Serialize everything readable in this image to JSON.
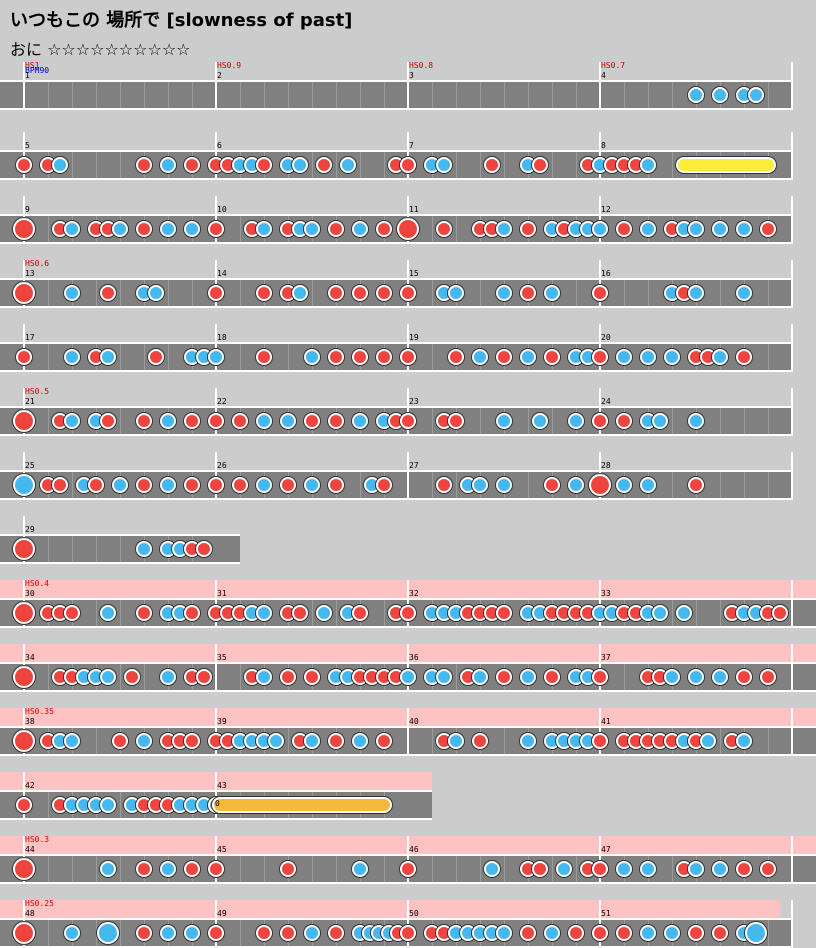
{
  "header": {
    "title": "いつもこの 場所で [slowness of past]",
    "difficulty": "おに ☆☆☆☆☆☆☆☆☆☆"
  },
  "colors": {
    "don": "#f0453e",
    "ka": "#45b9ef",
    "lane": "#808080",
    "hs_band": "#ffc2c2",
    "roll": "#fbec3c",
    "balloon": "#f7b93c"
  },
  "rows": [
    {
      "measures": [
        "1",
        "2",
        "3",
        "4"
      ],
      "labels": [
        {
          "m": 0,
          "text": "HS1",
          "kind": "hs"
        },
        {
          "m": 0,
          "text": "BPM90",
          "kind": "bpm"
        },
        {
          "m": 1,
          "text": "HS0.9",
          "kind": "hs"
        },
        {
          "m": 2,
          "text": "HS0.8",
          "kind": "hs"
        },
        {
          "m": 3,
          "text": "HS0.7",
          "kind": "hs"
        }
      ],
      "notes": "..............................................hhk"
    },
    {
      "measures": [
        "5",
        "6",
        "7",
        "8"
      ],
      "notes": ""
    },
    {
      "measures": [
        "9",
        "10",
        "11",
        "12"
      ]
    },
    {
      "measures": [
        "13",
        "14",
        "15",
        "16"
      ],
      "labels": [
        {
          "m": 0,
          "text": "HS0.6",
          "kind": "hs"
        }
      ]
    },
    {
      "measures": [
        "17",
        "18",
        "19",
        "20"
      ]
    },
    {
      "measures": [
        "21",
        "22",
        "23",
        "24"
      ],
      "labels": [
        {
          "m": 0,
          "text": "HS0.5",
          "kind": "hs"
        }
      ]
    },
    {
      "measures": [
        "25",
        "26",
        "27",
        "28"
      ]
    },
    {
      "measures": [
        "29"
      ]
    },
    {
      "measures": [
        "30",
        "31",
        "32",
        "33"
      ],
      "labels": [
        {
          "m": 0,
          "text": "HS0.4",
          "kind": "hs"
        }
      ]
    },
    {
      "measures": [
        "34",
        "35",
        "36",
        "37"
      ]
    },
    {
      "measures": [
        "38",
        "39",
        "40",
        "41"
      ],
      "labels": [
        {
          "m": 0,
          "text": "HS0.35",
          "kind": "hs"
        }
      ]
    },
    {
      "measures": [
        "42",
        "43"
      ],
      "roll_label": "0"
    },
    {
      "measures": [
        "44",
        "45",
        "46",
        "47"
      ],
      "labels": [
        {
          "m": 0,
          "text": "HS0.3",
          "kind": "hs"
        }
      ]
    },
    {
      "measures": [
        "48",
        "49",
        "50",
        "51"
      ],
      "labels": [
        {
          "m": 0,
          "text": "HS0.25",
          "kind": "hs"
        }
      ]
    }
  ]
}
